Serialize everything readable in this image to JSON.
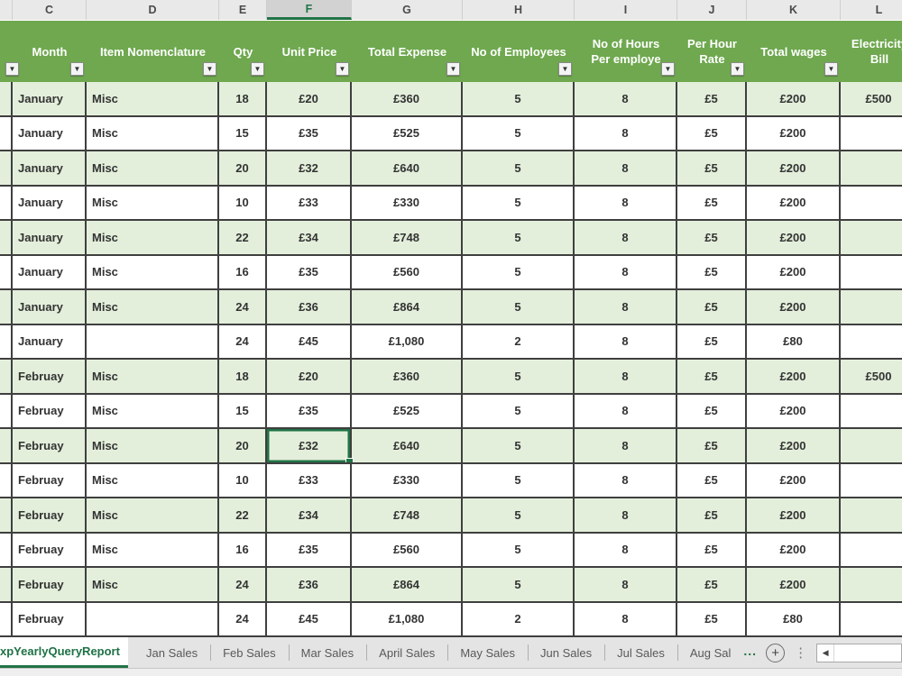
{
  "colors": {
    "header_green": "#6FA84F",
    "band_green": "#E3EFDB",
    "accent_green": "#217346",
    "grid_line": "#3F3F3F"
  },
  "icons": {
    "filter_arrow": "▼",
    "add_sheet": "+",
    "more_dots": "⋮",
    "scroll_left": "◀"
  },
  "column_strip": {
    "letters": [
      "C",
      "D",
      "E",
      "F",
      "G",
      "H",
      "I",
      "J",
      "K",
      "L"
    ],
    "selected": "F"
  },
  "table": {
    "headers": [
      {
        "col": "B",
        "label": "",
        "has_filter": true,
        "partial": true
      },
      {
        "col": "C",
        "label": "Month",
        "has_filter": true
      },
      {
        "col": "D",
        "label": "Item Nomenclature",
        "has_filter": true
      },
      {
        "col": "E",
        "label": "Qty",
        "has_filter": true
      },
      {
        "col": "F",
        "label": "Unit Price",
        "has_filter": true
      },
      {
        "col": "G",
        "label": "Total Expense",
        "has_filter": true
      },
      {
        "col": "H",
        "label": "No of Employees",
        "has_filter": true
      },
      {
        "col": "I",
        "label": "No of Hours\nPer employe",
        "has_filter": true
      },
      {
        "col": "J",
        "label": "Per Hour\nRate",
        "has_filter": true
      },
      {
        "col": "K",
        "label": "Total wages",
        "has_filter": true
      },
      {
        "col": "L",
        "label": "Electricity\nBill",
        "has_filter": false
      }
    ],
    "rows": [
      {
        "month": "January",
        "item": "Misc",
        "qty": "18",
        "unit_price": "£20",
        "total_expense": "£360",
        "employees": "5",
        "hours": "8",
        "rate": "£5",
        "wages": "£200",
        "electricity": "£500"
      },
      {
        "month": "January",
        "item": "Misc",
        "qty": "15",
        "unit_price": "£35",
        "total_expense": "£525",
        "employees": "5",
        "hours": "8",
        "rate": "£5",
        "wages": "£200",
        "electricity": ""
      },
      {
        "month": "January",
        "item": "Misc",
        "qty": "20",
        "unit_price": "£32",
        "total_expense": "£640",
        "employees": "5",
        "hours": "8",
        "rate": "£5",
        "wages": "£200",
        "electricity": ""
      },
      {
        "month": "January",
        "item": "Misc",
        "qty": "10",
        "unit_price": "£33",
        "total_expense": "£330",
        "employees": "5",
        "hours": "8",
        "rate": "£5",
        "wages": "£200",
        "electricity": ""
      },
      {
        "month": "January",
        "item": "Misc",
        "qty": "22",
        "unit_price": "£34",
        "total_expense": "£748",
        "employees": "5",
        "hours": "8",
        "rate": "£5",
        "wages": "£200",
        "electricity": ""
      },
      {
        "month": "January",
        "item": "Misc",
        "qty": "16",
        "unit_price": "£35",
        "total_expense": "£560",
        "employees": "5",
        "hours": "8",
        "rate": "£5",
        "wages": "£200",
        "electricity": ""
      },
      {
        "month": "January",
        "item": "Misc",
        "qty": "24",
        "unit_price": "£36",
        "total_expense": "£864",
        "employees": "5",
        "hours": "8",
        "rate": "£5",
        "wages": "£200",
        "electricity": ""
      },
      {
        "month": "January",
        "item": "",
        "qty": "24",
        "unit_price": "£45",
        "total_expense": "£1,080",
        "employees": "2",
        "hours": "8",
        "rate": "£5",
        "wages": "£80",
        "electricity": ""
      },
      {
        "month": "Februay",
        "item": "Misc",
        "qty": "18",
        "unit_price": "£20",
        "total_expense": "£360",
        "employees": "5",
        "hours": "8",
        "rate": "£5",
        "wages": "£200",
        "electricity": "£500"
      },
      {
        "month": "Februay",
        "item": "Misc",
        "qty": "15",
        "unit_price": "£35",
        "total_expense": "£525",
        "employees": "5",
        "hours": "8",
        "rate": "£5",
        "wages": "£200",
        "electricity": ""
      },
      {
        "month": "Februay",
        "item": "Misc",
        "qty": "20",
        "unit_price": "£32",
        "total_expense": "£640",
        "employees": "5",
        "hours": "8",
        "rate": "£5",
        "wages": "£200",
        "electricity": ""
      },
      {
        "month": "Februay",
        "item": "Misc",
        "qty": "10",
        "unit_price": "£33",
        "total_expense": "£330",
        "employees": "5",
        "hours": "8",
        "rate": "£5",
        "wages": "£200",
        "electricity": ""
      },
      {
        "month": "Februay",
        "item": "Misc",
        "qty": "22",
        "unit_price": "£34",
        "total_expense": "£748",
        "employees": "5",
        "hours": "8",
        "rate": "£5",
        "wages": "£200",
        "electricity": ""
      },
      {
        "month": "Februay",
        "item": "Misc",
        "qty": "16",
        "unit_price": "£35",
        "total_expense": "£560",
        "employees": "5",
        "hours": "8",
        "rate": "£5",
        "wages": "£200",
        "electricity": ""
      },
      {
        "month": "Februay",
        "item": "Misc",
        "qty": "24",
        "unit_price": "£36",
        "total_expense": "£864",
        "employees": "5",
        "hours": "8",
        "rate": "£5",
        "wages": "£200",
        "electricity": ""
      },
      {
        "month": "Februay",
        "item": "",
        "qty": "24",
        "unit_price": "£45",
        "total_expense": "£1,080",
        "employees": "2",
        "hours": "8",
        "rate": "£5",
        "wages": "£80",
        "electricity": ""
      }
    ],
    "selected_cell": {
      "row": 10,
      "field": "unit_price",
      "value": "£32"
    }
  },
  "tab_bar": {
    "active_tab": "xpYearlyQueryReport",
    "tabs": [
      "Jan Sales",
      "Feb Sales",
      "Mar Sales",
      "April Sales",
      "May Sales",
      "Jun Sales",
      "Jul Sales",
      "Aug Sal"
    ],
    "overflow_ellipsis": "..."
  }
}
